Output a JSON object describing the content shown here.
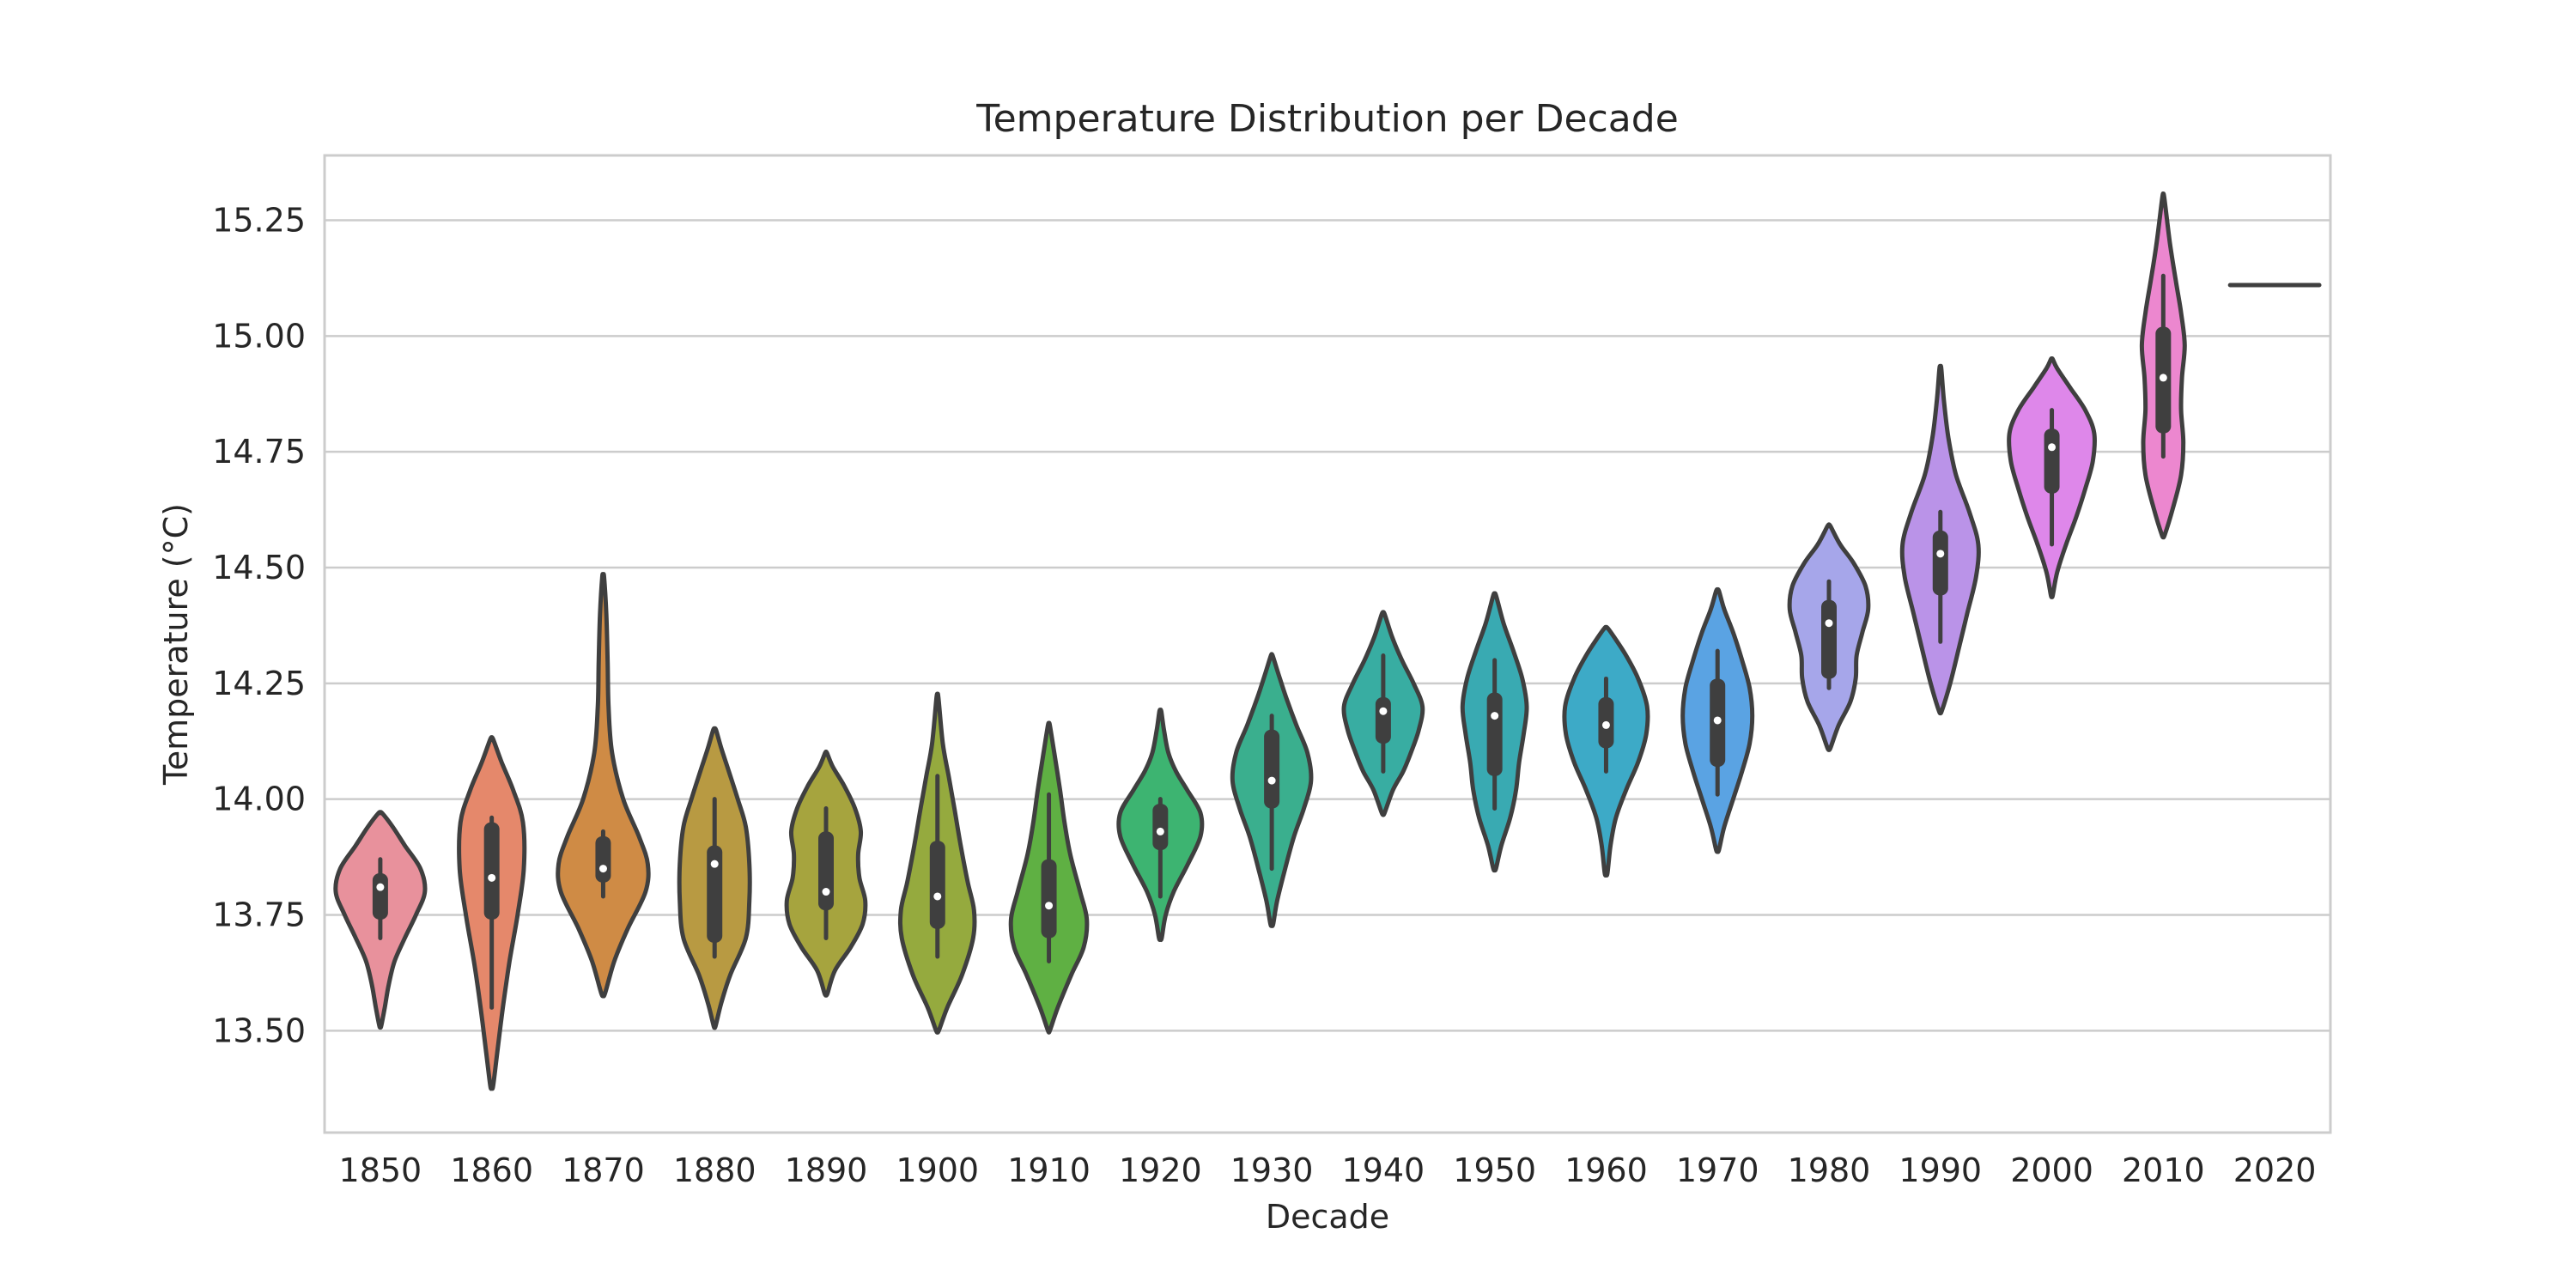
{
  "chart_data": {
    "type": "violin",
    "title": "Temperature Distribution per Decade",
    "xlabel": "Decade",
    "ylabel": "Temperature (°C)",
    "ylim": [
      13.28,
      15.39
    ],
    "yticks": [
      "13.50",
      "13.75",
      "14.00",
      "14.25",
      "14.50",
      "14.75",
      "15.00",
      "15.25"
    ],
    "grid": true,
    "categories": [
      "1850",
      "1860",
      "1870",
      "1880",
      "1890",
      "1900",
      "1910",
      "1920",
      "1930",
      "1940",
      "1950",
      "1960",
      "1970",
      "1980",
      "1990",
      "2000",
      "2010",
      "2020"
    ],
    "colors": [
      "#e8919c",
      "#e5886b",
      "#cf8b45",
      "#b89a42",
      "#a6a43e",
      "#95aa3e",
      "#5fb043",
      "#3db471",
      "#3aaf8e",
      "#38ada2",
      "#39aab2",
      "#3daac7",
      "#5aa3e3",
      "#a6a6ea",
      "#ba93e8",
      "#de87ea",
      "#ec87cf",
      "#e78ab6"
    ],
    "series": [
      {
        "category": "1850",
        "min": 13.51,
        "max": 13.97,
        "median": 13.81,
        "q1": 13.74,
        "q3": 13.84,
        "whisker_lo": 13.7,
        "whisker_hi": 13.87,
        "profile": [
          [
            13.51,
            0.02
          ],
          [
            13.55,
            0.1
          ],
          [
            13.6,
            0.19
          ],
          [
            13.65,
            0.32
          ],
          [
            13.7,
            0.55
          ],
          [
            13.75,
            0.8
          ],
          [
            13.8,
            1.0
          ],
          [
            13.85,
            0.9
          ],
          [
            13.9,
            0.55
          ],
          [
            13.94,
            0.28
          ],
          [
            13.97,
            0.04
          ]
        ]
      },
      {
        "category": "1860",
        "min": 13.38,
        "max": 14.13,
        "median": 13.83,
        "q1": 13.74,
        "q3": 13.95,
        "whisker_lo": 13.55,
        "whisker_hi": 13.96,
        "profile": [
          [
            13.38,
            0.03
          ],
          [
            13.45,
            0.12
          ],
          [
            13.55,
            0.25
          ],
          [
            13.65,
            0.4
          ],
          [
            13.75,
            0.58
          ],
          [
            13.85,
            0.72
          ],
          [
            13.95,
            0.7
          ],
          [
            14.02,
            0.48
          ],
          [
            14.08,
            0.22
          ],
          [
            14.13,
            0.03
          ]
        ]
      },
      {
        "category": "1870",
        "min": 13.58,
        "max": 14.48,
        "median": 13.85,
        "q1": 13.82,
        "q3": 13.92,
        "whisker_lo": 13.79,
        "whisker_hi": 13.93,
        "profile": [
          [
            13.58,
            0.04
          ],
          [
            13.65,
            0.25
          ],
          [
            13.72,
            0.55
          ],
          [
            13.8,
            0.95
          ],
          [
            13.86,
            1.0
          ],
          [
            13.92,
            0.8
          ],
          [
            14.0,
            0.45
          ],
          [
            14.1,
            0.2
          ],
          [
            14.2,
            0.12
          ],
          [
            14.3,
            0.1
          ],
          [
            14.4,
            0.07
          ],
          [
            14.48,
            0.02
          ]
        ]
      },
      {
        "category": "1880",
        "min": 13.51,
        "max": 14.15,
        "median": 13.86,
        "q1": 13.69,
        "q3": 13.9,
        "whisker_lo": 13.66,
        "whisker_hi": 14.0,
        "profile": [
          [
            13.51,
            0.02
          ],
          [
            13.56,
            0.15
          ],
          [
            13.62,
            0.35
          ],
          [
            13.7,
            0.7
          ],
          [
            13.78,
            0.78
          ],
          [
            13.86,
            0.78
          ],
          [
            13.94,
            0.7
          ],
          [
            14.0,
            0.52
          ],
          [
            14.06,
            0.32
          ],
          [
            14.11,
            0.15
          ],
          [
            14.15,
            0.03
          ]
        ]
      },
      {
        "category": "1890",
        "min": 13.58,
        "max": 14.1,
        "median": 13.8,
        "q1": 13.76,
        "q3": 13.93,
        "whisker_lo": 13.7,
        "whisker_hi": 13.98,
        "profile": [
          [
            13.58,
            0.03
          ],
          [
            13.63,
            0.2
          ],
          [
            13.68,
            0.55
          ],
          [
            13.73,
            0.82
          ],
          [
            13.78,
            0.88
          ],
          [
            13.83,
            0.75
          ],
          [
            13.88,
            0.72
          ],
          [
            13.93,
            0.78
          ],
          [
            13.98,
            0.65
          ],
          [
            14.03,
            0.4
          ],
          [
            14.07,
            0.15
          ],
          [
            14.1,
            0.02
          ]
        ]
      },
      {
        "category": "1900",
        "min": 13.5,
        "max": 14.22,
        "median": 13.79,
        "q1": 13.72,
        "q3": 13.91,
        "whisker_lo": 13.66,
        "whisker_hi": 14.05,
        "profile": [
          [
            13.5,
            0.03
          ],
          [
            13.55,
            0.22
          ],
          [
            13.62,
            0.55
          ],
          [
            13.7,
            0.8
          ],
          [
            13.76,
            0.82
          ],
          [
            13.82,
            0.68
          ],
          [
            13.9,
            0.52
          ],
          [
            13.98,
            0.38
          ],
          [
            14.05,
            0.25
          ],
          [
            14.12,
            0.12
          ],
          [
            14.22,
            0.02
          ]
        ]
      },
      {
        "category": "1910",
        "min": 13.5,
        "max": 14.16,
        "median": 13.77,
        "q1": 13.7,
        "q3": 13.87,
        "whisker_lo": 13.65,
        "whisker_hi": 14.01,
        "profile": [
          [
            13.5,
            0.02
          ],
          [
            13.55,
            0.2
          ],
          [
            13.62,
            0.5
          ],
          [
            13.68,
            0.78
          ],
          [
            13.74,
            0.85
          ],
          [
            13.8,
            0.7
          ],
          [
            13.88,
            0.48
          ],
          [
            13.95,
            0.35
          ],
          [
            14.02,
            0.25
          ],
          [
            14.1,
            0.12
          ],
          [
            14.16,
            0.02
          ]
        ]
      },
      {
        "category": "1920",
        "min": 13.7,
        "max": 14.19,
        "median": 13.93,
        "q1": 13.89,
        "q3": 13.99,
        "whisker_lo": 13.79,
        "whisker_hi": 14.0,
        "profile": [
          [
            13.7,
            0.03
          ],
          [
            13.75,
            0.12
          ],
          [
            13.8,
            0.3
          ],
          [
            13.86,
            0.62
          ],
          [
            13.92,
            0.9
          ],
          [
            13.97,
            0.9
          ],
          [
            14.02,
            0.6
          ],
          [
            14.06,
            0.35
          ],
          [
            14.1,
            0.18
          ],
          [
            14.15,
            0.08
          ],
          [
            14.19,
            0.02
          ]
        ]
      },
      {
        "category": "1930",
        "min": 13.73,
        "max": 14.31,
        "median": 14.04,
        "q1": 13.98,
        "q3": 14.15,
        "whisker_lo": 13.85,
        "whisker_hi": 14.18,
        "profile": [
          [
            13.73,
            0.03
          ],
          [
            13.78,
            0.12
          ],
          [
            13.85,
            0.3
          ],
          [
            13.92,
            0.5
          ],
          [
            13.98,
            0.72
          ],
          [
            14.04,
            0.88
          ],
          [
            14.1,
            0.8
          ],
          [
            14.16,
            0.55
          ],
          [
            14.22,
            0.32
          ],
          [
            14.27,
            0.15
          ],
          [
            14.31,
            0.02
          ]
        ]
      },
      {
        "category": "1940",
        "min": 13.97,
        "max": 14.4,
        "median": 14.19,
        "q1": 14.12,
        "q3": 14.22,
        "whisker_lo": 14.06,
        "whisker_hi": 14.31,
        "profile": [
          [
            13.97,
            0.03
          ],
          [
            14.02,
            0.22
          ],
          [
            14.06,
            0.45
          ],
          [
            14.1,
            0.62
          ],
          [
            14.15,
            0.8
          ],
          [
            14.2,
            0.88
          ],
          [
            14.25,
            0.68
          ],
          [
            14.3,
            0.42
          ],
          [
            14.35,
            0.2
          ],
          [
            14.4,
            0.03
          ]
        ]
      },
      {
        "category": "1950",
        "min": 13.85,
        "max": 14.44,
        "median": 14.18,
        "q1": 14.05,
        "q3": 14.23,
        "whisker_lo": 13.98,
        "whisker_hi": 14.3,
        "profile": [
          [
            13.85,
            0.03
          ],
          [
            13.9,
            0.15
          ],
          [
            13.96,
            0.35
          ],
          [
            14.02,
            0.48
          ],
          [
            14.08,
            0.55
          ],
          [
            14.14,
            0.65
          ],
          [
            14.2,
            0.72
          ],
          [
            14.26,
            0.62
          ],
          [
            14.32,
            0.42
          ],
          [
            14.38,
            0.2
          ],
          [
            14.44,
            0.03
          ]
        ]
      },
      {
        "category": "1960",
        "min": 13.84,
        "max": 14.37,
        "median": 14.16,
        "q1": 14.11,
        "q3": 14.22,
        "whisker_lo": 14.06,
        "whisker_hi": 14.26,
        "profile": [
          [
            13.84,
            0.03
          ],
          [
            13.9,
            0.1
          ],
          [
            13.96,
            0.22
          ],
          [
            14.02,
            0.45
          ],
          [
            14.08,
            0.72
          ],
          [
            14.14,
            0.9
          ],
          [
            14.2,
            0.92
          ],
          [
            14.26,
            0.72
          ],
          [
            14.31,
            0.45
          ],
          [
            14.35,
            0.18
          ],
          [
            14.37,
            0.03
          ]
        ]
      },
      {
        "category": "1970",
        "min": 13.89,
        "max": 14.45,
        "median": 14.17,
        "q1": 14.07,
        "q3": 14.26,
        "whisker_lo": 14.01,
        "whisker_hi": 14.32,
        "profile": [
          [
            13.89,
            0.03
          ],
          [
            13.94,
            0.15
          ],
          [
            14.0,
            0.35
          ],
          [
            14.06,
            0.55
          ],
          [
            14.12,
            0.72
          ],
          [
            14.18,
            0.78
          ],
          [
            14.24,
            0.72
          ],
          [
            14.3,
            0.55
          ],
          [
            14.36,
            0.35
          ],
          [
            14.41,
            0.15
          ],
          [
            14.45,
            0.03
          ]
        ]
      },
      {
        "category": "1980",
        "min": 14.11,
        "max": 14.59,
        "median": 14.38,
        "q1": 14.26,
        "q3": 14.43,
        "whisker_lo": 14.24,
        "whisker_hi": 14.47,
        "profile": [
          [
            14.11,
            0.03
          ],
          [
            14.16,
            0.22
          ],
          [
            14.21,
            0.48
          ],
          [
            14.26,
            0.6
          ],
          [
            14.31,
            0.62
          ],
          [
            14.36,
            0.75
          ],
          [
            14.41,
            0.88
          ],
          [
            14.46,
            0.82
          ],
          [
            14.51,
            0.55
          ],
          [
            14.55,
            0.25
          ],
          [
            14.59,
            0.03
          ]
        ]
      },
      {
        "category": "1990",
        "min": 14.19,
        "max": 14.93,
        "median": 14.53,
        "q1": 14.44,
        "q3": 14.58,
        "whisker_lo": 14.34,
        "whisker_hi": 14.62,
        "profile": [
          [
            14.19,
            0.03
          ],
          [
            14.25,
            0.22
          ],
          [
            14.32,
            0.4
          ],
          [
            14.4,
            0.6
          ],
          [
            14.48,
            0.8
          ],
          [
            14.55,
            0.85
          ],
          [
            14.62,
            0.65
          ],
          [
            14.7,
            0.35
          ],
          [
            14.78,
            0.18
          ],
          [
            14.86,
            0.08
          ],
          [
            14.93,
            0.02
          ]
        ]
      },
      {
        "category": "2000",
        "min": 14.44,
        "max": 14.95,
        "median": 14.76,
        "q1": 14.66,
        "q3": 14.8,
        "whisker_lo": 14.55,
        "whisker_hi": 14.84,
        "profile": [
          [
            14.44,
            0.02
          ],
          [
            14.49,
            0.12
          ],
          [
            14.55,
            0.32
          ],
          [
            14.61,
            0.55
          ],
          [
            14.67,
            0.75
          ],
          [
            14.73,
            0.92
          ],
          [
            14.79,
            0.95
          ],
          [
            14.84,
            0.75
          ],
          [
            14.89,
            0.4
          ],
          [
            14.93,
            0.12
          ],
          [
            14.95,
            0.02
          ]
        ]
      },
      {
        "category": "2010",
        "min": 14.57,
        "max": 15.3,
        "median": 14.91,
        "q1": 14.79,
        "q3": 15.02,
        "whisker_lo": 14.74,
        "whisker_hi": 15.13,
        "profile": [
          [
            14.57,
            0.03
          ],
          [
            14.63,
            0.22
          ],
          [
            14.7,
            0.4
          ],
          [
            14.77,
            0.45
          ],
          [
            14.84,
            0.4
          ],
          [
            14.91,
            0.42
          ],
          [
            14.98,
            0.48
          ],
          [
            15.05,
            0.4
          ],
          [
            15.12,
            0.28
          ],
          [
            15.2,
            0.15
          ],
          [
            15.3,
            0.02
          ]
        ]
      },
      {
        "category": "2020",
        "single_value": 15.11
      }
    ]
  }
}
